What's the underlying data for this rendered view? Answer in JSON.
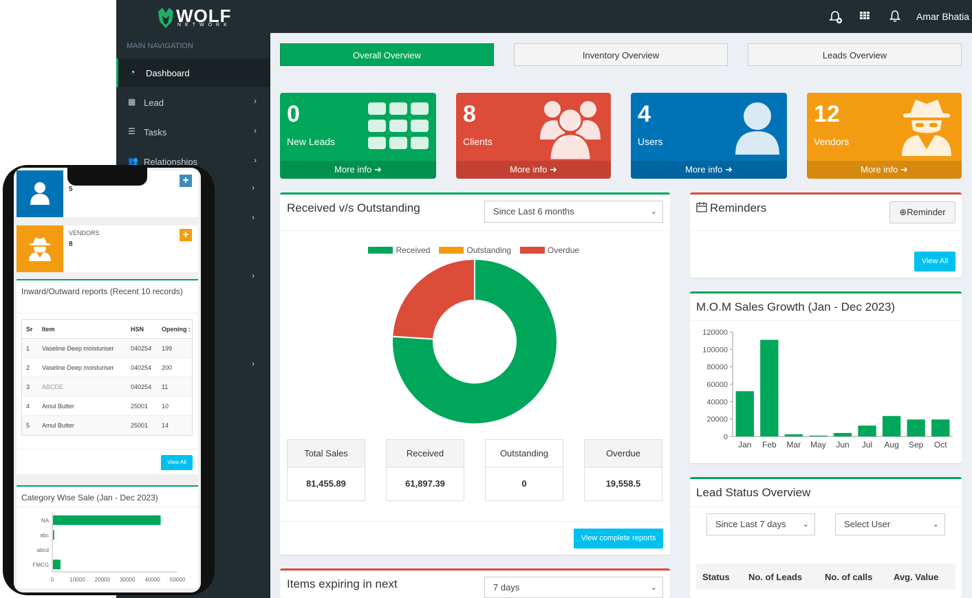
{
  "header": {
    "brand": "WOLF",
    "brand_sub": "NETWORK",
    "user_name": "Amar Bhatia",
    "icons": [
      "add-alert-icon",
      "apps-grid-icon",
      "bell-icon"
    ]
  },
  "sidebar": {
    "section_label": "MAIN NAVIGATION",
    "items": [
      {
        "label": "Dashboard",
        "icon": "dashboard-icon"
      },
      {
        "label": "Lead",
        "icon": "grid-icon"
      },
      {
        "label": "Tasks",
        "icon": "list-icon"
      },
      {
        "label": "Relationships",
        "icon": "users-icon"
      }
    ]
  },
  "tabs": [
    "Overall Overview",
    "Inventory Overview",
    "Leads Overview"
  ],
  "stats": [
    {
      "value": "0",
      "label": "New Leads",
      "more": "More info",
      "color": "#00a65a",
      "icon": "grid-icon"
    },
    {
      "value": "8",
      "label": "Clients",
      "more": "More info",
      "color": "#dd4b39",
      "icon": "group-icon"
    },
    {
      "value": "4",
      "label": "Users",
      "more": "More info",
      "color": "#0073b7",
      "icon": "user-icon"
    },
    {
      "value": "12",
      "label": "Vendors",
      "more": "More info",
      "color": "#f39c12",
      "icon": "spy-icon"
    }
  ],
  "received_outstanding": {
    "title": "Received v/s Outstanding",
    "period": "Since Last 6 months",
    "summary": [
      {
        "label": "Total Sales",
        "value": "81,455.89"
      },
      {
        "label": "Received",
        "value": "61,897.39"
      },
      {
        "label": "Outstanding",
        "value": "0"
      },
      {
        "label": "Overdue",
        "value": "19,558.5"
      }
    ],
    "button": "View complete reports"
  },
  "reminders": {
    "title": "Reminders",
    "add_button": "Reminder",
    "view_all": "View All"
  },
  "mom_title": "M.O.M Sales Growth (Jan - Dec 2023)",
  "lead_status": {
    "title": "Lead Status Overview",
    "period": "Since Last 7 days",
    "user_select": "Select User",
    "columns": [
      "Status",
      "No. of Leads",
      "No. of calls",
      "Avg. Value"
    ]
  },
  "expiring": {
    "title": "Items expiring in next",
    "period": "7 days"
  },
  "phone": {
    "users_value": "5",
    "vendors_label": "VENDORS",
    "vendors_value": "8",
    "inward_title": "Inward/Outward reports (Recent 10 records)",
    "table_columns": [
      "Sr",
      "Item",
      "HSN",
      "Opening"
    ],
    "table_rows": [
      [
        "1",
        "Vaseline Deep moisturiser",
        "040254",
        "199"
      ],
      [
        "2",
        "Vaseline Deep moisturiser",
        "040254",
        "200"
      ],
      [
        "3",
        "ABCDE",
        "040254",
        "11"
      ],
      [
        "4",
        "Amul Butter",
        "25001",
        "10"
      ],
      [
        "5",
        "Amul Butter",
        "25001",
        "14"
      ]
    ],
    "view_all": "View All",
    "category_title": "Category Wise Sale (Jan - Dec 2023)"
  },
  "chart_data": [
    {
      "type": "pie",
      "title": "",
      "categories": [
        "Received",
        "Outstanding",
        "Overdue"
      ],
      "values": [
        61897.39,
        0,
        19558.5
      ],
      "colors": [
        "#00a65a",
        "#f39c12",
        "#dd4b39"
      ],
      "donut": true,
      "legend": "top"
    },
    {
      "type": "bar",
      "title": "",
      "categories": [
        "Jan",
        "Feb",
        "Mar",
        "May",
        "Jun",
        "Jul",
        "Aug",
        "Sep",
        "Oct"
      ],
      "values": [
        52000,
        111000,
        2500,
        1000,
        4000,
        12500,
        23500,
        19500,
        19500
      ],
      "ylim": [
        0,
        120000
      ],
      "yticks": [
        "0",
        "20000",
        "40000",
        "60000",
        "80000",
        "100000",
        "120000"
      ],
      "color": "#00a65a"
    },
    {
      "type": "bar",
      "orientation": "horizontal",
      "title": "",
      "categories": [
        "NA",
        "abc",
        "abcd",
        "FMCG"
      ],
      "values": [
        43000,
        500,
        0,
        3000
      ],
      "xlim": [
        0,
        50000
      ],
      "xticks": [
        "0",
        "10000",
        "20000",
        "30000",
        "40000",
        "50000"
      ],
      "color": "#00a65a"
    }
  ]
}
